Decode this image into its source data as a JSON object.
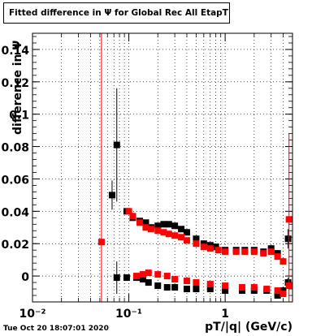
{
  "chart_data": {
    "type": "scatter",
    "title": "Fitted difference in  Ψ  for Global Rec All EtapT",
    "xlabel": "pT/|q| (GeV/c)",
    "ylabel": "difference in Ψ",
    "x_scale": "log",
    "xlim": [
      0.01,
      5.0
    ],
    "ylim": [
      -0.016,
      0.15
    ],
    "x_tick_labels": [
      "10⁻²",
      "10⁻¹",
      "1"
    ],
    "y_tick_labels": [
      "0",
      "0.02",
      "0.04",
      "0.06",
      "0.08",
      "0.1",
      "0.12",
      "0.14"
    ],
    "grid": true,
    "series": [
      {
        "color": "#000000",
        "marker": "square",
        "points": [
          {
            "x": 0.067,
            "y": 0.05,
            "err": 0.009
          },
          {
            "x": 0.075,
            "y": 0.081,
            "err": 0.035
          },
          {
            "x": 0.075,
            "y": -0.001,
            "err": 0.01
          },
          {
            "x": 0.095,
            "y": 0.04,
            "err": 0.002
          },
          {
            "x": 0.095,
            "y": -0.001,
            "err": 0.002
          },
          {
            "x": 0.11,
            "y": 0.036,
            "err": 0.001
          },
          {
            "x": 0.13,
            "y": 0.034,
            "err": 0.001
          },
          {
            "x": 0.15,
            "y": 0.033,
            "err": 0.001
          },
          {
            "x": 0.17,
            "y": 0.03,
            "err": 0.001
          },
          {
            "x": 0.2,
            "y": 0.031,
            "err": 0.001
          },
          {
            "x": 0.23,
            "y": 0.032,
            "err": 0.001
          },
          {
            "x": 0.26,
            "y": 0.032,
            "err": 0.001
          },
          {
            "x": 0.3,
            "y": 0.031,
            "err": 0.001
          },
          {
            "x": 0.35,
            "y": 0.029,
            "err": 0.001
          },
          {
            "x": 0.4,
            "y": 0.027,
            "err": 0.001
          },
          {
            "x": 0.5,
            "y": 0.023,
            "err": 0.001
          },
          {
            "x": 0.6,
            "y": 0.02,
            "err": 0.001
          },
          {
            "x": 0.7,
            "y": 0.019,
            "err": 0.001
          },
          {
            "x": 0.8,
            "y": 0.018,
            "err": 0.001
          },
          {
            "x": 1.0,
            "y": 0.016,
            "err": 0.001
          },
          {
            "x": 1.3,
            "y": 0.016,
            "err": 0.001
          },
          {
            "x": 1.6,
            "y": 0.016,
            "err": 0.001
          },
          {
            "x": 2.0,
            "y": 0.016,
            "err": 0.001
          },
          {
            "x": 2.5,
            "y": 0.015,
            "err": 0.002
          },
          {
            "x": 3.0,
            "y": 0.017,
            "err": 0.002
          },
          {
            "x": 3.5,
            "y": 0.014,
            "err": 0.002
          },
          {
            "x": 4.5,
            "y": 0.023,
            "err": 0.006
          },
          {
            "x": 0.12,
            "y": -0.001,
            "err": 0.001
          },
          {
            "x": 0.14,
            "y": -0.002,
            "err": 0.001
          },
          {
            "x": 0.16,
            "y": -0.004,
            "err": 0.001
          },
          {
            "x": 0.2,
            "y": -0.006,
            "err": 0.001
          },
          {
            "x": 0.25,
            "y": -0.007,
            "err": 0.001
          },
          {
            "x": 0.3,
            "y": -0.007,
            "err": 0.001
          },
          {
            "x": 0.4,
            "y": -0.008,
            "err": 0.001
          },
          {
            "x": 0.5,
            "y": -0.008,
            "err": 0.001
          },
          {
            "x": 0.7,
            "y": -0.008,
            "err": 0.001
          },
          {
            "x": 1.0,
            "y": -0.009,
            "err": 0.001
          },
          {
            "x": 1.5,
            "y": -0.009,
            "err": 0.001
          },
          {
            "x": 2.0,
            "y": -0.009,
            "err": 0.001
          },
          {
            "x": 2.7,
            "y": -0.009,
            "err": 0.001
          },
          {
            "x": 3.5,
            "y": -0.012,
            "err": 0.002
          },
          {
            "x": 4.0,
            "y": -0.009,
            "err": 0.002
          },
          {
            "x": 4.5,
            "y": -0.004,
            "err": 0.003
          }
        ]
      },
      {
        "color": "#ff0000",
        "marker": "square",
        "points": [
          {
            "x": 0.052,
            "y": 0.021,
            "err": 0.15
          },
          {
            "x": 0.1,
            "y": 0.04,
            "err": 0.002
          },
          {
            "x": 0.11,
            "y": 0.037,
            "err": 0.002
          },
          {
            "x": 0.13,
            "y": 0.033,
            "err": 0.001
          },
          {
            "x": 0.15,
            "y": 0.03,
            "err": 0.001
          },
          {
            "x": 0.17,
            "y": 0.029,
            "err": 0.001
          },
          {
            "x": 0.2,
            "y": 0.028,
            "err": 0.001
          },
          {
            "x": 0.23,
            "y": 0.027,
            "err": 0.001
          },
          {
            "x": 0.26,
            "y": 0.026,
            "err": 0.001
          },
          {
            "x": 0.3,
            "y": 0.025,
            "err": 0.001
          },
          {
            "x": 0.35,
            "y": 0.024,
            "err": 0.001
          },
          {
            "x": 0.4,
            "y": 0.022,
            "err": 0.001
          },
          {
            "x": 0.5,
            "y": 0.02,
            "err": 0.001
          },
          {
            "x": 0.6,
            "y": 0.018,
            "err": 0.001
          },
          {
            "x": 0.7,
            "y": 0.017,
            "err": 0.001
          },
          {
            "x": 0.85,
            "y": 0.016,
            "err": 0.001
          },
          {
            "x": 1.0,
            "y": 0.015,
            "err": 0.001
          },
          {
            "x": 1.3,
            "y": 0.015,
            "err": 0.001
          },
          {
            "x": 1.6,
            "y": 0.015,
            "err": 0.001
          },
          {
            "x": 2.0,
            "y": 0.015,
            "err": 0.001
          },
          {
            "x": 2.5,
            "y": 0.014,
            "err": 0.001
          },
          {
            "x": 3.0,
            "y": 0.015,
            "err": 0.002
          },
          {
            "x": 3.5,
            "y": 0.012,
            "err": 0.002
          },
          {
            "x": 4.0,
            "y": 0.009,
            "err": 0.002
          },
          {
            "x": 4.6,
            "y": 0.035,
            "err": 0.053
          },
          {
            "x": 0.12,
            "y": 0.0,
            "err": 0.001
          },
          {
            "x": 0.14,
            "y": 0.001,
            "err": 0.001
          },
          {
            "x": 0.16,
            "y": 0.002,
            "err": 0.001
          },
          {
            "x": 0.2,
            "y": 0.001,
            "err": 0.001
          },
          {
            "x": 0.25,
            "y": 0.0,
            "err": 0.001
          },
          {
            "x": 0.3,
            "y": -0.002,
            "err": 0.001
          },
          {
            "x": 0.4,
            "y": -0.003,
            "err": 0.001
          },
          {
            "x": 0.5,
            "y": -0.004,
            "err": 0.001
          },
          {
            "x": 0.7,
            "y": -0.005,
            "err": 0.001
          },
          {
            "x": 1.0,
            "y": -0.006,
            "err": 0.001
          },
          {
            "x": 1.5,
            "y": -0.007,
            "err": 0.001
          },
          {
            "x": 2.0,
            "y": -0.007,
            "err": 0.001
          },
          {
            "x": 2.7,
            "y": -0.008,
            "err": 0.001
          },
          {
            "x": 3.5,
            "y": -0.009,
            "err": 0.002
          },
          {
            "x": 4.0,
            "y": -0.011,
            "err": 0.002
          },
          {
            "x": 4.6,
            "y": -0.006,
            "err": 0.003
          }
        ]
      }
    ]
  },
  "footer": {
    "timestamp": "Tue Oct 20 18:07:01 2020"
  }
}
